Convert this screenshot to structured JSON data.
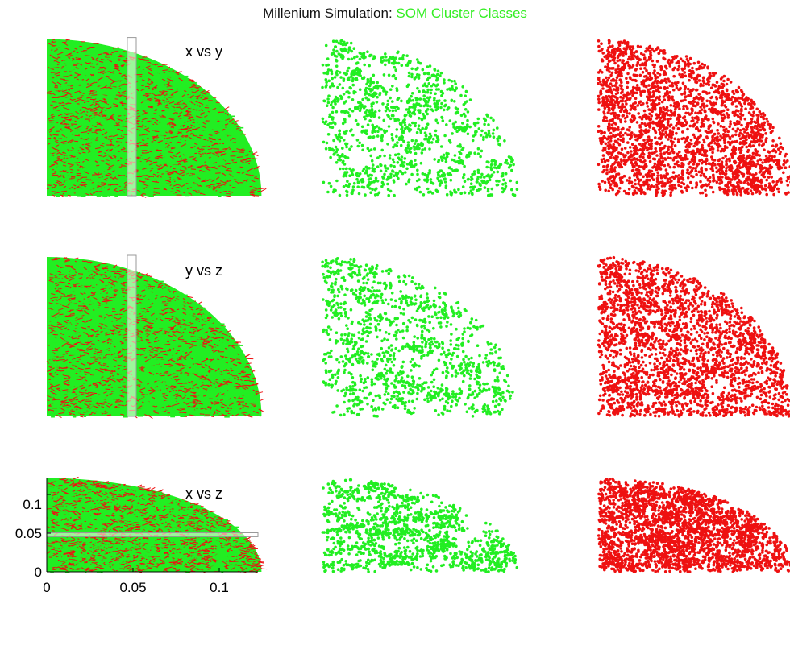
{
  "title": {
    "prefix": "Millenium Simulation: ",
    "highlight": "SOM Cluster Classes",
    "highlight_color": "#33ee22"
  },
  "colors": {
    "green": "#22ee22",
    "red": "#ee1111",
    "band_fill": "#ffffff",
    "band_stroke": "#999999"
  },
  "chart_data": [
    {
      "type": "scatter",
      "id": "xy-combined",
      "label": "x vs y",
      "series": [
        {
          "color": "#22ee22",
          "density": "very high",
          "region": "quarter disk, radius ~0.12"
        },
        {
          "color": "#ee1111",
          "density": "high",
          "region": "quarter disk, radius ~0.12"
        }
      ],
      "xlim": [
        0,
        0.12
      ],
      "ylim": [
        0,
        0.12
      ],
      "highlight_band": {
        "orientation": "vertical",
        "range": [
          0.045,
          0.05
        ]
      }
    },
    {
      "type": "scatter",
      "id": "xy-green",
      "series": [
        {
          "color": "#22ee22",
          "density": "sparse clusters"
        }
      ],
      "xlim": [
        0,
        0.12
      ],
      "ylim": [
        0,
        0.12
      ]
    },
    {
      "type": "scatter",
      "id": "xy-red",
      "series": [
        {
          "color": "#ee1111",
          "density": "medium"
        }
      ],
      "xlim": [
        0,
        0.12
      ],
      "ylim": [
        0,
        0.12
      ]
    },
    {
      "type": "scatter",
      "id": "yz-combined",
      "label": "y vs z",
      "series": [
        {
          "color": "#22ee22",
          "density": "very high"
        },
        {
          "color": "#ee1111",
          "density": "high"
        }
      ],
      "xlim": [
        0,
        0.12
      ],
      "ylim": [
        0,
        0.12
      ],
      "highlight_band": {
        "orientation": "vertical",
        "range": [
          0.045,
          0.05
        ]
      }
    },
    {
      "type": "scatter",
      "id": "yz-green",
      "series": [
        {
          "color": "#22ee22",
          "density": "sparse clusters"
        }
      ],
      "xlim": [
        0,
        0.12
      ],
      "ylim": [
        0,
        0.12
      ]
    },
    {
      "type": "scatter",
      "id": "yz-red",
      "series": [
        {
          "color": "#ee1111",
          "density": "medium"
        }
      ],
      "xlim": [
        0,
        0.12
      ],
      "ylim": [
        0,
        0.12
      ]
    },
    {
      "type": "scatter",
      "id": "xz-combined",
      "label": "x vs z",
      "series": [
        {
          "color": "#22ee22",
          "density": "very high"
        },
        {
          "color": "#ee1111",
          "density": "high"
        }
      ],
      "xlim": [
        0,
        0.12
      ],
      "ylim": [
        0,
        0.12
      ],
      "xticks": [
        "0",
        "0.05",
        "0.1"
      ],
      "yticks": [
        "0",
        "0.05",
        "0.1"
      ],
      "highlight_band": {
        "orientation": "horizontal",
        "range": [
          0.045,
          0.05
        ]
      }
    },
    {
      "type": "scatter",
      "id": "xz-green",
      "series": [
        {
          "color": "#22ee22",
          "density": "sparse clusters"
        }
      ],
      "xlim": [
        0,
        0.12
      ],
      "ylim": [
        0,
        0.12
      ]
    },
    {
      "type": "scatter",
      "id": "xz-red",
      "series": [
        {
          "color": "#ee1111",
          "density": "medium"
        }
      ],
      "xlim": [
        0,
        0.12
      ],
      "ylim": [
        0,
        0.12
      ]
    }
  ]
}
